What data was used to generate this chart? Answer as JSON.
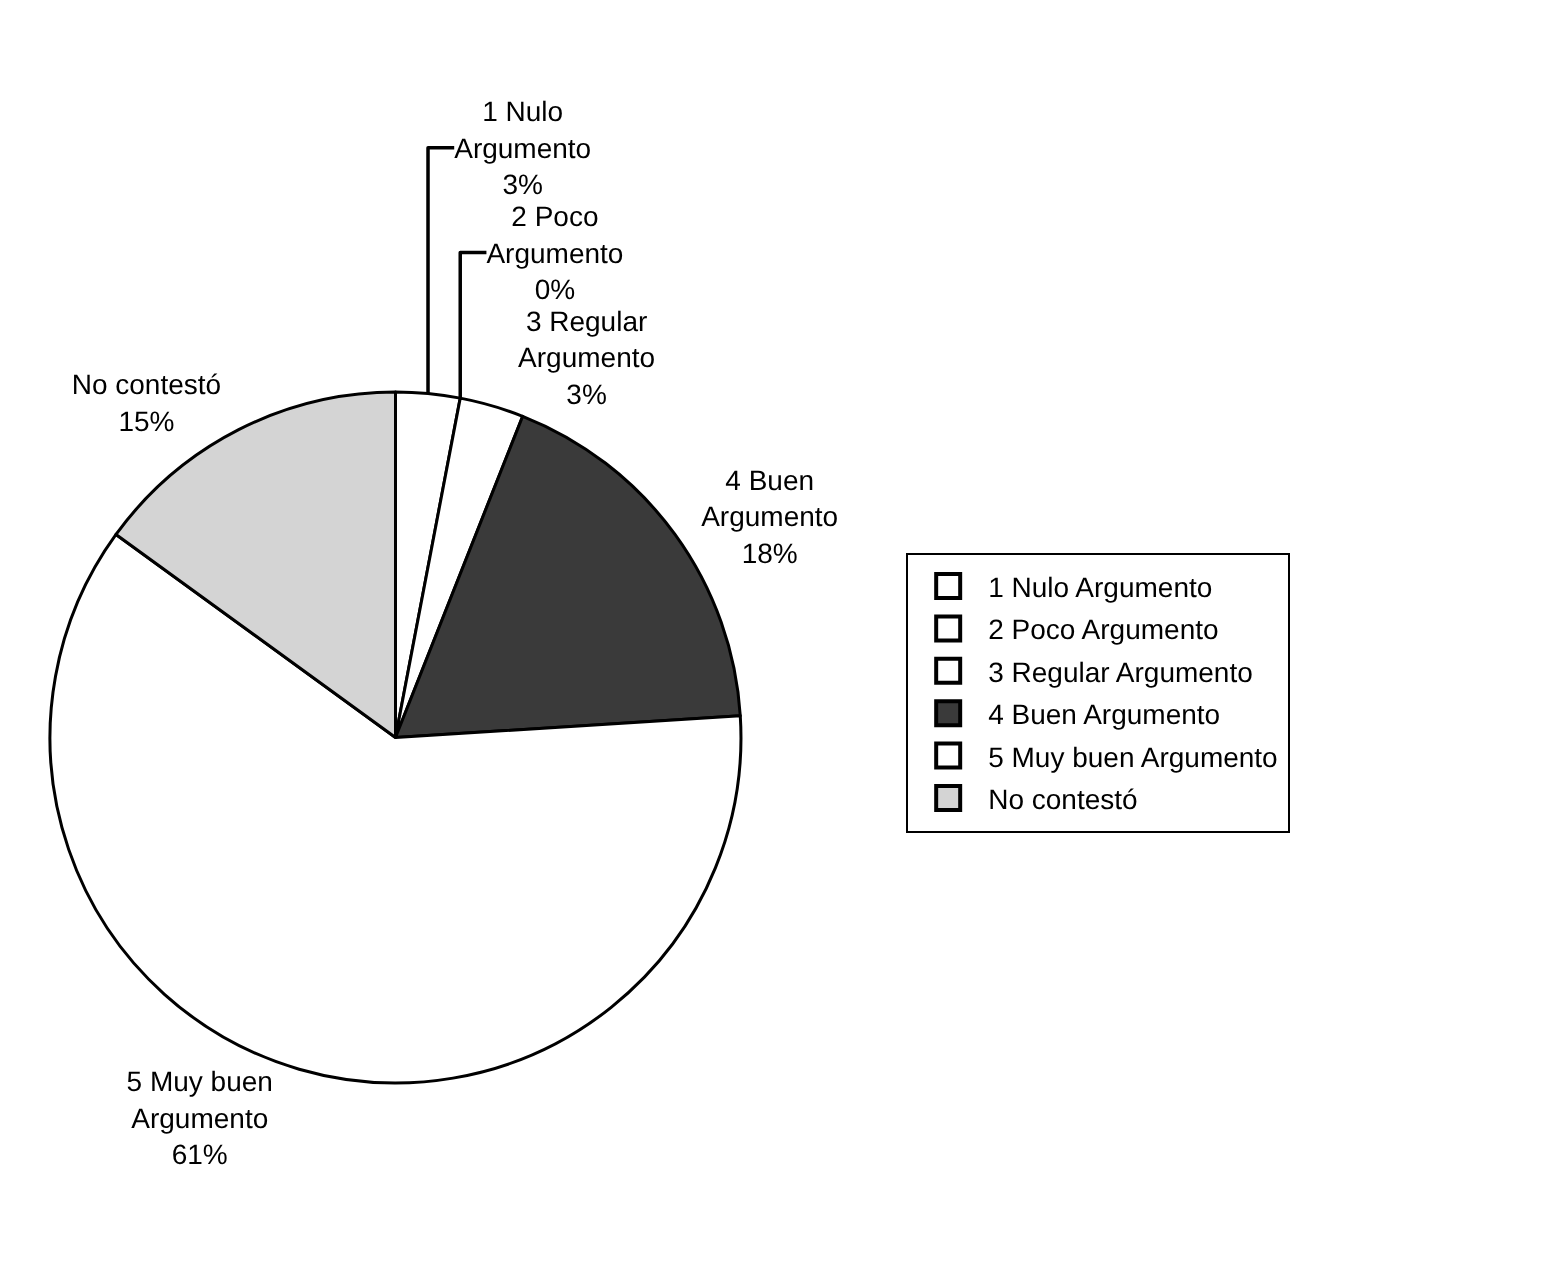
{
  "chart_data": {
    "type": "pie",
    "categories": [
      "1 Nulo Argumento",
      "2 Poco Argumento",
      "3 Regular Argumento",
      "4 Buen Argumento",
      "5 Muy buen Argumento",
      "No contestó"
    ],
    "values": [
      3,
      0,
      3,
      18,
      61,
      15
    ],
    "value_labels": [
      "3%",
      "0%",
      "3%",
      "18%",
      "61%",
      "15%"
    ],
    "colors": [
      "#ffffff",
      "#ffffff",
      "#ffffff",
      "#3a3a3a",
      "#ffffff",
      "#d4d4d4"
    ],
    "legend": "right"
  }
}
